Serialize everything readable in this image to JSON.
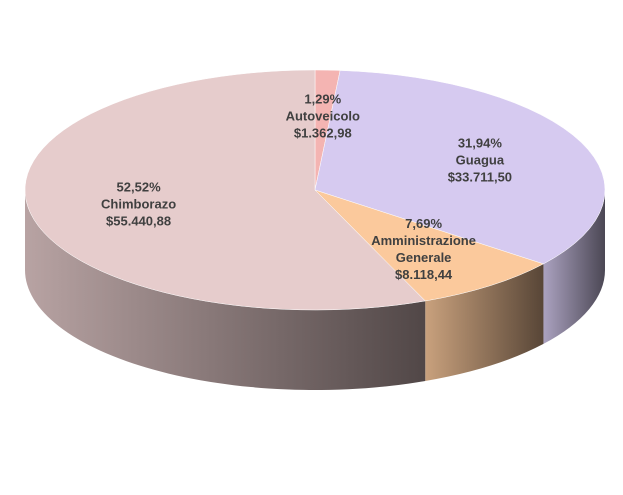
{
  "chart_data": {
    "type": "pie",
    "categories": [
      "Autoveicolo",
      "Guagua",
      "Amministrazione Generale",
      "Chimborazo"
    ],
    "values": [
      1.29,
      31.94,
      7.69,
      52.52
    ],
    "value_labels": [
      "1,29%",
      "31,94%",
      "7,69%",
      "52,52%"
    ],
    "amounts": [
      1362.98,
      33711.5,
      8118.44,
      55440.88
    ],
    "amount_labels": [
      "$1.362,98",
      "$33.711,50",
      "$8.118,44",
      "$55.440,88"
    ],
    "colors": [
      "#f4b4b2",
      "#d6caf0",
      "#fbc99c",
      "#e6cccc"
    ]
  }
}
